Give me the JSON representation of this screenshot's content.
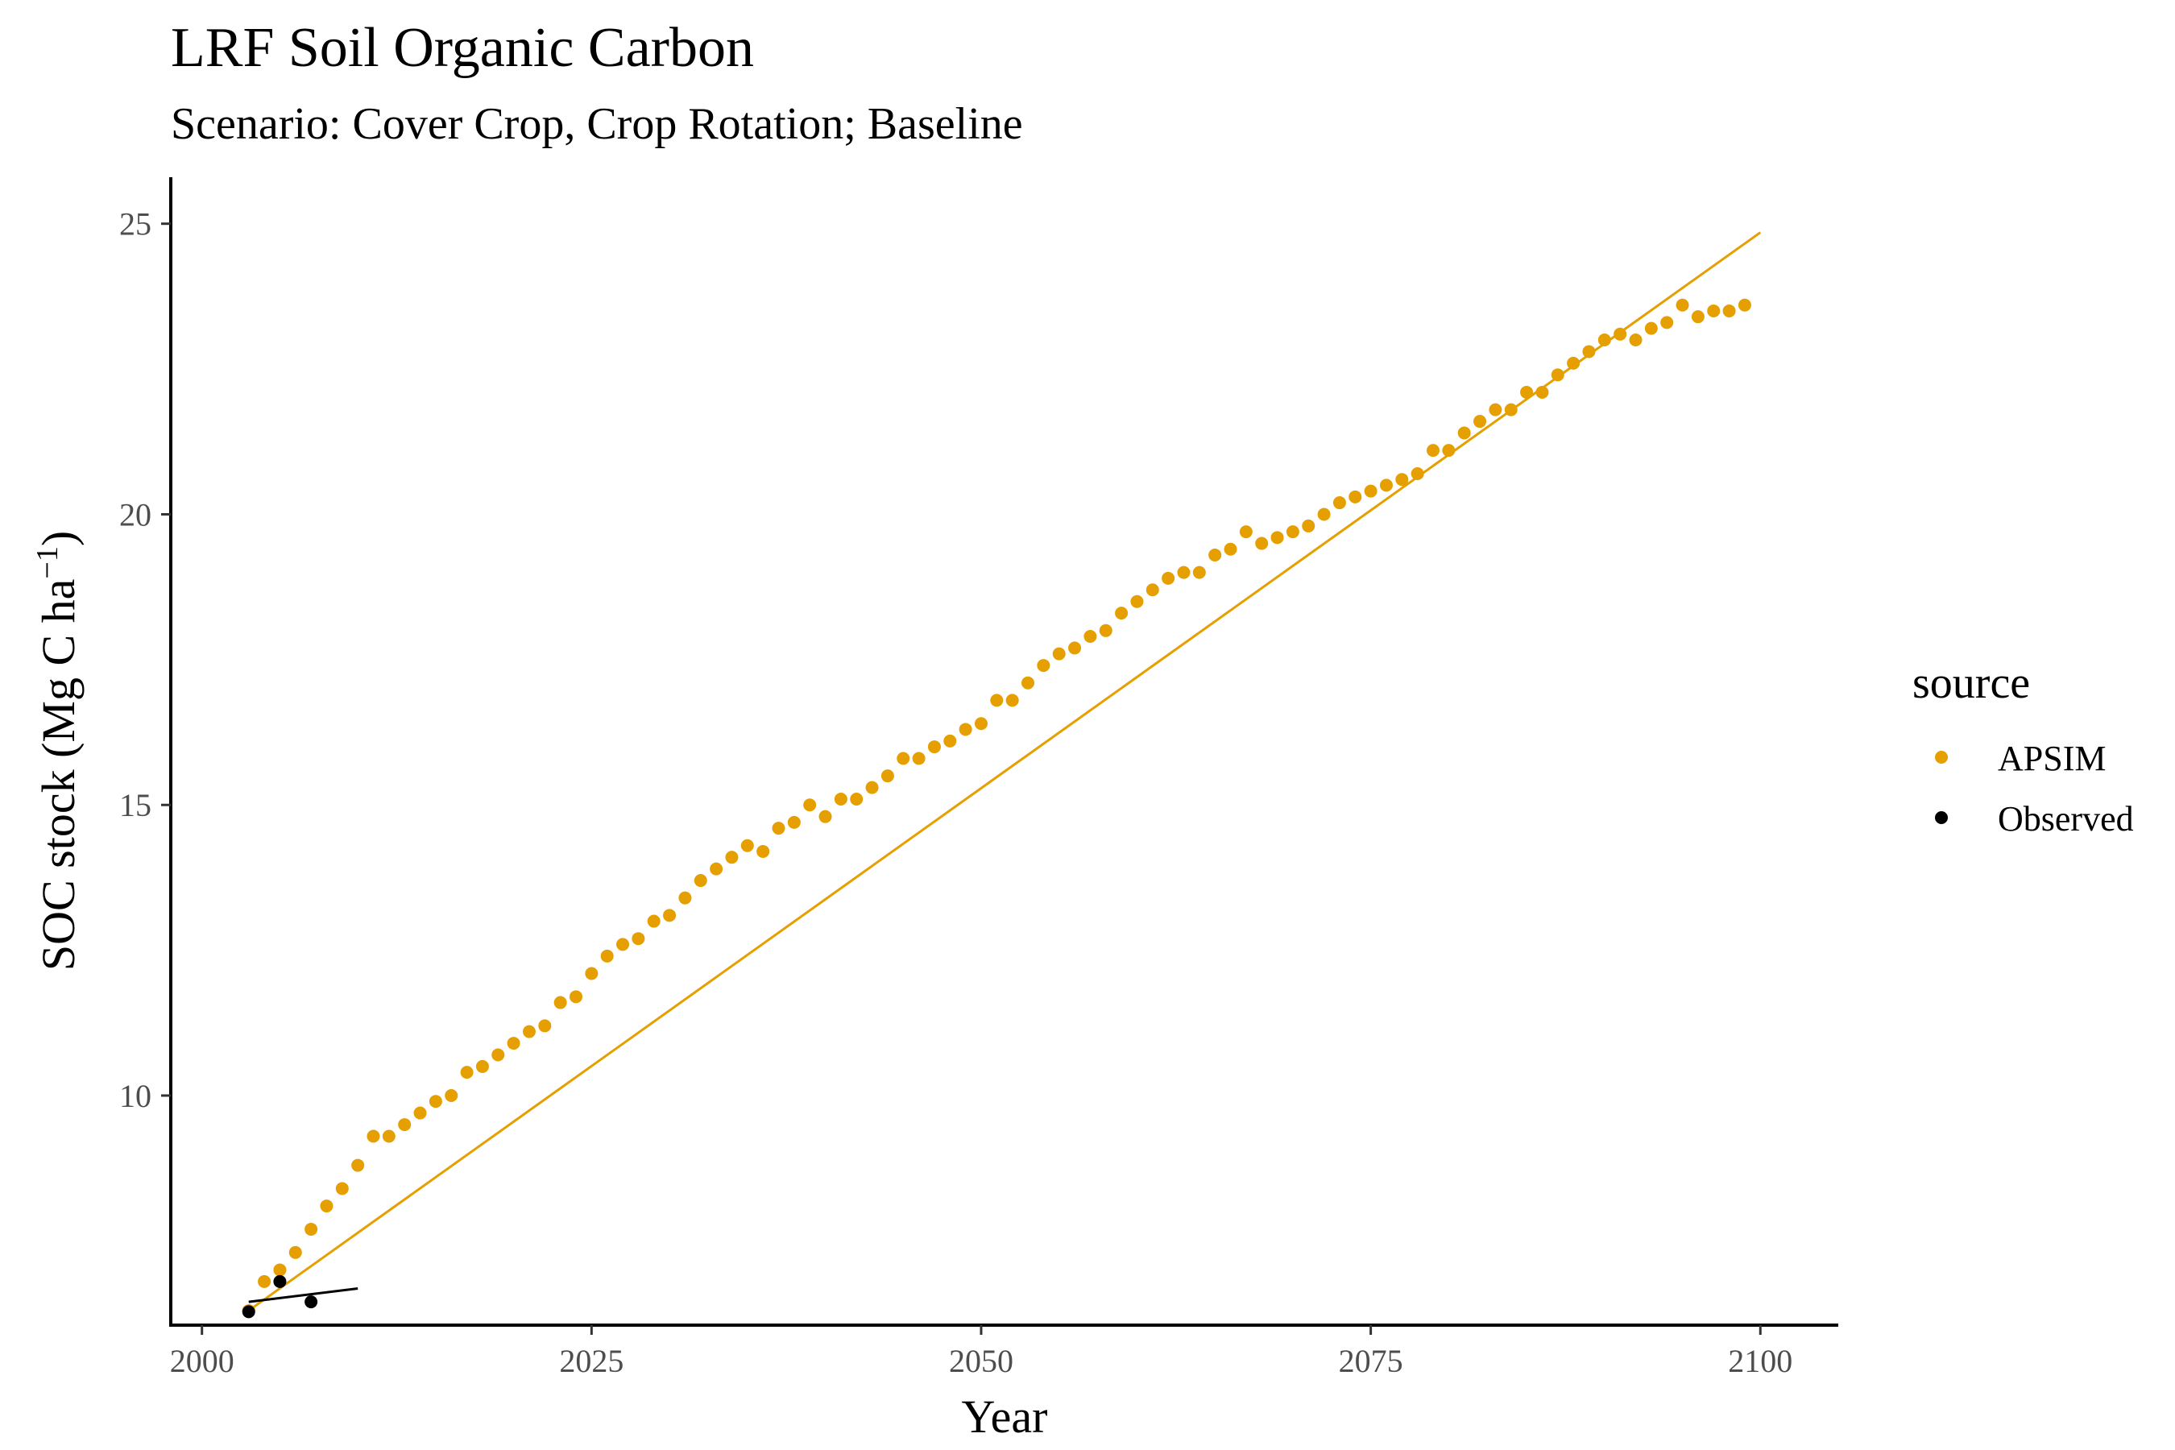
{
  "chart_data": {
    "type": "scatter",
    "title": "LRF Soil Organic Carbon",
    "subtitle": "Scenario: Cover Crop, Crop Rotation; Baseline",
    "xlabel": "Year",
    "ylabel": "SOC stock (Mg C ha",
    "ylabel_sup": "−1",
    "ylabel_close": ")",
    "xlim": [
      1998,
      2105
    ],
    "ylim": [
      6.05,
      25.8
    ],
    "xticks": [
      2000,
      2025,
      2050,
      2075,
      2100
    ],
    "yticks": [
      10,
      15,
      20,
      25
    ],
    "grid": false,
    "legend": {
      "title": "source",
      "position": "right"
    },
    "series": [
      {
        "name": "APSIM",
        "color": "#E69F00",
        "x": [
          2003,
          2004,
          2005,
          2006,
          2007,
          2008,
          2009,
          2010,
          2011,
          2012,
          2013,
          2014,
          2015,
          2016,
          2017,
          2018,
          2019,
          2020,
          2021,
          2022,
          2023,
          2024,
          2025,
          2026,
          2027,
          2028,
          2029,
          2030,
          2031,
          2032,
          2033,
          2034,
          2035,
          2036,
          2037,
          2038,
          2039,
          2040,
          2041,
          2042,
          2043,
          2044,
          2045,
          2046,
          2047,
          2048,
          2049,
          2050,
          2051,
          2052,
          2053,
          2054,
          2055,
          2056,
          2057,
          2058,
          2059,
          2060,
          2061,
          2062,
          2063,
          2064,
          2065,
          2066,
          2067,
          2068,
          2069,
          2070,
          2071,
          2072,
          2073,
          2074,
          2075,
          2076,
          2077,
          2078,
          2079,
          2080,
          2081,
          2082,
          2083,
          2084,
          2085,
          2086,
          2087,
          2088,
          2089,
          2090,
          2091,
          2092,
          2093,
          2094,
          2095,
          2096,
          2097,
          2098,
          2099
        ],
        "y": [
          6.3,
          6.8,
          7.0,
          7.3,
          7.7,
          8.1,
          8.4,
          8.8,
          9.3,
          9.3,
          9.5,
          9.7,
          9.9,
          10.0,
          10.4,
          10.5,
          10.7,
          10.9,
          11.1,
          11.2,
          11.6,
          11.7,
          12.1,
          12.4,
          12.6,
          12.7,
          13.0,
          13.1,
          13.4,
          13.7,
          13.9,
          14.1,
          14.3,
          14.2,
          14.6,
          14.7,
          15.0,
          14.8,
          15.1,
          15.1,
          15.3,
          15.5,
          15.8,
          15.8,
          16.0,
          16.1,
          16.3,
          16.4,
          16.8,
          16.8,
          17.1,
          17.4,
          17.6,
          17.7,
          17.9,
          18.0,
          18.3,
          18.5,
          18.7,
          18.9,
          19.0,
          19.0,
          19.3,
          19.4,
          19.7,
          19.5,
          19.6,
          19.7,
          19.8,
          20.0,
          20.2,
          20.3,
          20.4,
          20.5,
          20.6,
          20.7,
          21.1,
          21.1,
          21.4,
          21.6,
          21.8,
          21.8,
          22.1,
          22.1,
          22.4,
          22.6,
          22.8,
          23.0,
          23.1,
          23.0,
          23.2,
          23.3,
          23.6,
          23.4,
          23.5,
          23.5,
          23.6
        ],
        "trend": {
          "x": [
            2003,
            2100
          ],
          "y": [
            6.3,
            24.85
          ]
        }
      },
      {
        "name": "Observed",
        "color": "#000000",
        "x": [
          2003,
          2005,
          2007
        ],
        "y": [
          6.28,
          6.8,
          6.45
        ],
        "trend": {
          "x": [
            2003,
            2010
          ],
          "y": [
            6.45,
            6.68
          ]
        }
      }
    ]
  }
}
